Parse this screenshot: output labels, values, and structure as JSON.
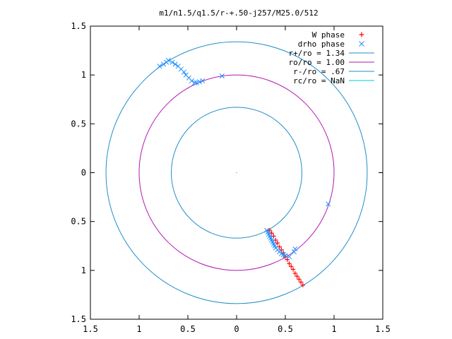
{
  "chart_data": {
    "type": "scatter",
    "title": "m1/n1.5/q1.5/r-+.50-j257/M25.0/512",
    "xlabel": "",
    "ylabel": "",
    "xlim": [
      -1.5,
      1.5
    ],
    "ylim": [
      -1.5,
      1.5
    ],
    "x_ticks": [
      -1.5,
      -1,
      -0.5,
      0,
      0.5,
      1,
      1.5
    ],
    "y_ticks": [
      -1.5,
      -1,
      -0.5,
      0,
      0.5,
      1,
      1.5
    ],
    "x_tick_labels": [
      "1.5",
      "1",
      "0.5",
      "0",
      "0.5",
      "1",
      "1.5"
    ],
    "y_tick_labels": [
      "1.5",
      "1",
      "0.5",
      "0",
      "0.5",
      "1",
      "1.5"
    ],
    "grid": false,
    "legend_position": "top-right",
    "series": [
      {
        "name": "W phase",
        "marker": "plus",
        "color": "#ff0000",
        "x": [
          0.34,
          0.36,
          0.38,
          0.4,
          0.42,
          0.44,
          0.46,
          0.48,
          0.5,
          0.52,
          0.54,
          0.56,
          0.58,
          0.6,
          0.62,
          0.64,
          0.66,
          0.68
        ],
        "y": [
          -0.59,
          -0.62,
          -0.65,
          -0.69,
          -0.72,
          -0.76,
          -0.79,
          -0.82,
          -0.86,
          -0.89,
          -0.93,
          -0.96,
          -0.99,
          -1.03,
          -1.06,
          -1.09,
          -1.12,
          -1.15
        ]
      },
      {
        "name": "drho phase",
        "marker": "cross",
        "color": "#1e90ff",
        "x": [
          -0.79,
          -0.75,
          -0.72,
          -0.7,
          -0.66,
          -0.63,
          -0.6,
          -0.57,
          -0.54,
          -0.52,
          -0.49,
          -0.46,
          -0.43,
          -0.41,
          -0.38,
          -0.35,
          -0.15,
          0.31,
          0.32,
          0.33,
          0.34,
          0.35,
          0.36,
          0.37,
          0.38,
          0.39,
          0.4,
          0.42,
          0.44,
          0.46,
          0.48,
          0.5,
          0.54,
          0.59,
          0.6,
          0.94
        ],
        "y": [
          1.09,
          1.11,
          1.13,
          1.15,
          1.13,
          1.11,
          1.09,
          1.06,
          1.03,
          1.0,
          0.97,
          0.94,
          0.92,
          0.92,
          0.93,
          0.94,
          0.99,
          -0.59,
          -0.61,
          -0.63,
          -0.65,
          -0.67,
          -0.69,
          -0.71,
          -0.73,
          -0.75,
          -0.77,
          -0.79,
          -0.81,
          -0.83,
          -0.84,
          -0.85,
          -0.86,
          -0.81,
          -0.78,
          -0.32
        ]
      },
      {
        "name": "r+/ro = 1.34",
        "type": "circle",
        "radius": 1.34,
        "color": "#1f8fc8"
      },
      {
        "name": "ro/ro = 1.00",
        "type": "circle",
        "radius": 1.0,
        "color": "#b218b2"
      },
      {
        "name": "r-/ro = .67",
        "type": "circle",
        "radius": 0.67,
        "color": "#1f8fc8"
      },
      {
        "name": "rc/ro = NaN",
        "type": "circle",
        "radius": null,
        "color": "#00cccc"
      }
    ]
  }
}
